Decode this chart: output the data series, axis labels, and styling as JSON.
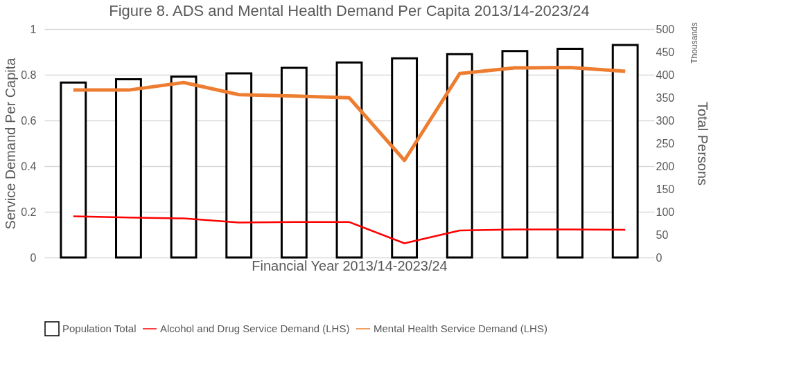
{
  "chart_data": {
    "type": "bar",
    "title": "Figure 8. ADS and Mental Health Demand Per Capita 2013/14-2023/24",
    "xlabel": "Financial Year 2013/14-2023/24",
    "ylabel": "Service Demand Per Capita",
    "y2label": "Total Persons",
    "annotations": [
      "Thousands"
    ],
    "categories": [
      null,
      null,
      null,
      null,
      null,
      null,
      null,
      null,
      null,
      null,
      null
    ],
    "series": [
      {
        "name": "Population Total",
        "axis": "y2",
        "color": "#000000",
        "values": [
          383,
          390,
          396,
          403,
          415,
          427,
          436,
          445,
          452,
          457,
          465
        ]
      },
      {
        "name": "Alcohol and Drug Service Demand (LHS)",
        "type": "line",
        "color": "#ff0000",
        "values": [
          0.18,
          0.175,
          0.171,
          0.153,
          0.155,
          0.155,
          0.062,
          0.118,
          0.123,
          0.123,
          0.121
        ]
      },
      {
        "name": "Mental Health Service Demand (LHS)",
        "type": "line",
        "color": "#ed7d31",
        "values": [
          0.733,
          0.733,
          0.766,
          0.713,
          0.707,
          0.699,
          0.425,
          0.805,
          0.83,
          0.832,
          0.815
        ]
      }
    ],
    "ylim": [
      0,
      1
    ],
    "yticks": [
      0,
      0.2,
      0.4,
      0.6,
      0.8,
      1
    ],
    "y2lim": [
      0,
      500
    ],
    "y2ticks": [
      0,
      50,
      100,
      150,
      200,
      250,
      300,
      350,
      400,
      450,
      500
    ],
    "grid": "y",
    "legend": "bottom",
    "tick_labels": "y",
    "marker": "none",
    "line_style": "solid"
  }
}
